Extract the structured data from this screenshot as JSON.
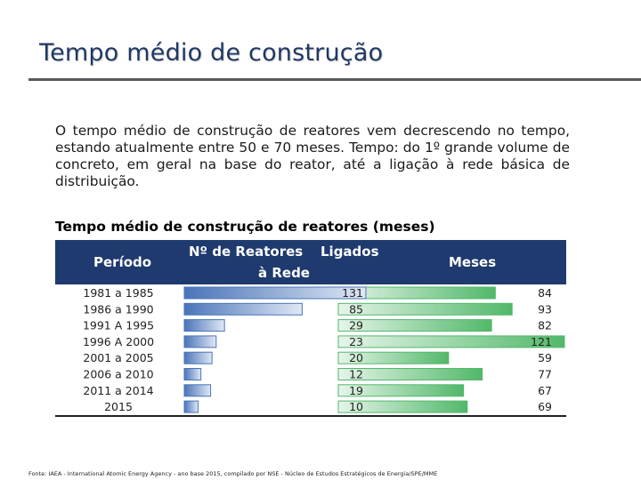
{
  "slide": {
    "title": "Tempo médio de construção",
    "intro": "O tempo médio de construção de reatores vem decrescendo no tempo, estando atualmente entre 50 e 70 meses. Tempo: do 1º grande volume de concreto, em geral na base do reator, até a ligação à rede básica de distribuição.",
    "source": "Fonte: IAEA - International Atomic Energy Agency - ano base 2015, compilado por NSE - Núcleo de Estudos Estratégicos de Energia/SPE/MME"
  },
  "table_headers": {
    "periodo": "Período",
    "reatores_line1": "Nº de Reatores",
    "reatores_line2": "à Rede",
    "ligados": "Ligados",
    "meses": "Meses"
  },
  "colors": {
    "header_bg": "#1f3a6e",
    "reactor_bar_dark": "#4a74b8",
    "reactor_bar_light": "#dfe8f5",
    "months_bar_dark": "#52b86a",
    "months_bar_light": "#e6f5ea"
  },
  "chart_data": {
    "type": "bar",
    "title": "Tempo médio de construção de reatores (meses)",
    "categories": [
      "1981 a 1985",
      "1986 a 1990",
      "1991 A 1995",
      "1996 A 2000",
      "2001 a 2005",
      "2006 a 2010",
      "2011 a 2014",
      "2015"
    ],
    "series": [
      {
        "name": "Nº de Reatores Ligados à Rede",
        "values": [
          131,
          85,
          29,
          23,
          20,
          12,
          19,
          10
        ],
        "xlim": [
          0,
          131
        ]
      },
      {
        "name": "Meses",
        "values": [
          84,
          93,
          82,
          121,
          59,
          77,
          67,
          69
        ],
        "xlim": [
          0,
          121
        ]
      }
    ]
  }
}
